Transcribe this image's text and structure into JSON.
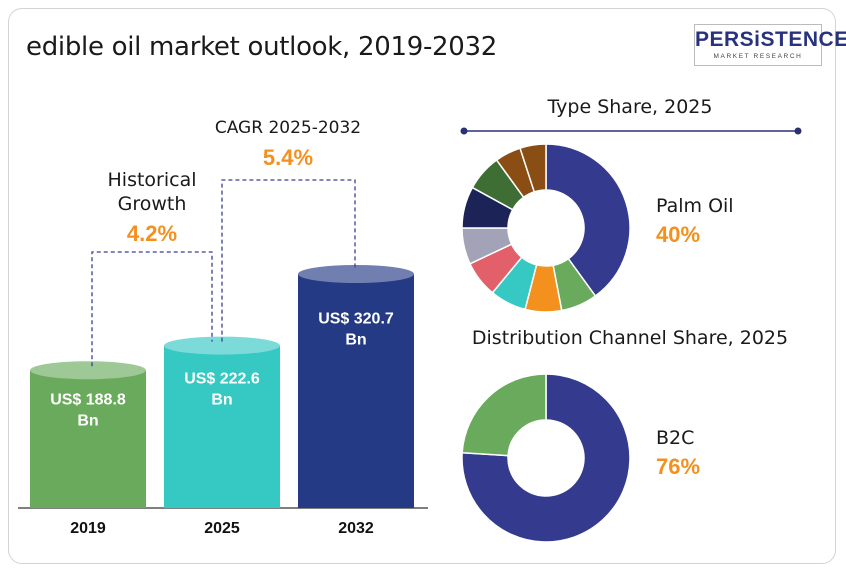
{
  "title": "edible oil market outlook, 2019-2032",
  "logo": {
    "name": "PERSiSTENCE",
    "tagline": "MARKET RESEARCH"
  },
  "colors": {
    "green": "#6aaa5c",
    "teal": "#36c8c3",
    "navy": "#243a85",
    "orange": "#f3901e",
    "donut_navy": "#343b8e"
  },
  "chart_data": [
    {
      "type": "bar",
      "categories": [
        "2019",
        "2025",
        "2032"
      ],
      "values": [
        188.8,
        222.6,
        320.7
      ],
      "value_labels": [
        [
          "US$ 188.8",
          "Bn"
        ],
        [
          "US$ 222.6",
          "Bn"
        ],
        [
          "US$ 320.7",
          "Bn"
        ]
      ],
      "colors": [
        "#6aaa5c",
        "#36c8c3",
        "#243a85"
      ],
      "annotations": [
        {
          "label_lines": [
            "Historical",
            "Growth"
          ],
          "value": "4.2%"
        },
        {
          "label_lines": [
            "CAGR 2025-2032"
          ],
          "value": "5.4%"
        }
      ]
    },
    {
      "type": "pie",
      "title": "Type  Share, 2025",
      "highlight": {
        "name": "Palm Oil",
        "value": "40%"
      },
      "values": [
        40,
        7,
        7,
        7,
        7,
        7,
        8,
        7,
        5,
        5
      ],
      "colors": [
        "#343b8e",
        "#6aaa5c",
        "#f3901e",
        "#36c8c3",
        "#e2606a",
        "#a3a3b8",
        "#1c2457",
        "#3f6e34",
        "#8a4e14",
        "#8a4e14"
      ]
    },
    {
      "type": "pie",
      "title": "Distribution Channel  Share, 2025",
      "highlight": {
        "name": "B2C",
        "value": "76%"
      },
      "values": [
        76,
        24
      ],
      "colors": [
        "#343b8e",
        "#6aaa5c"
      ]
    }
  ]
}
